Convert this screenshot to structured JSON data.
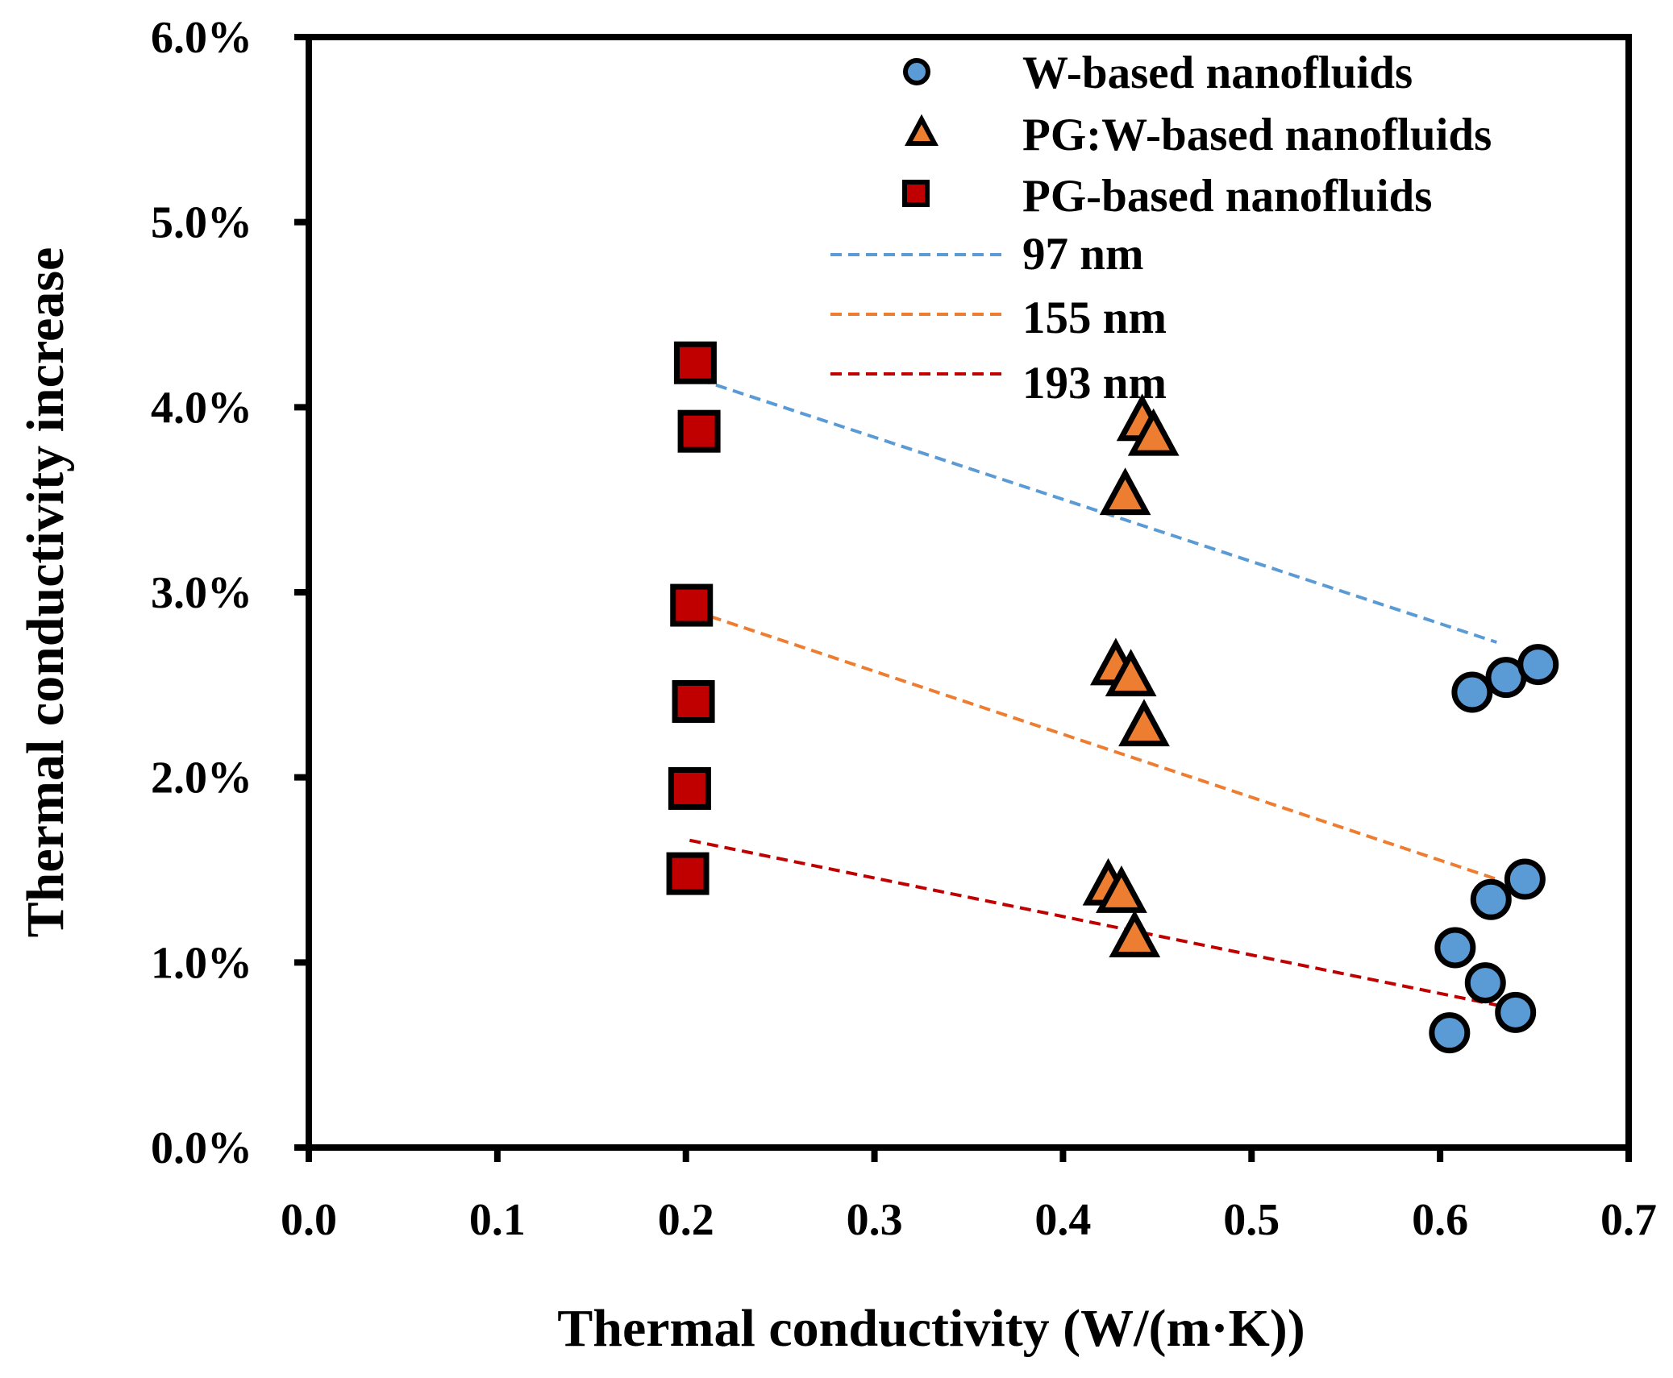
{
  "chart_data": {
    "type": "scatter",
    "xlabel": "Thermal conductivity (W/(m·K))",
    "ylabel": "Thermal conductivity increase",
    "xlim": [
      0,
      0.7
    ],
    "ylim": [
      0,
      0.06
    ],
    "x_ticks": [
      "0.0",
      "0.1",
      "0.2",
      "0.3",
      "0.4",
      "0.5",
      "0.6",
      "0.7"
    ],
    "y_ticks": [
      "0.0%",
      "1.0%",
      "2.0%",
      "3.0%",
      "4.0%",
      "5.0%",
      "6.0%"
    ],
    "grid": false,
    "legend_position": "top-right",
    "series": [
      {
        "name": "W-based nanofluids",
        "marker": "circle",
        "color": "#5B9BD5",
        "points": [
          [
            0.617,
            0.0246
          ],
          [
            0.635,
            0.0254
          ],
          [
            0.652,
            0.0261
          ],
          [
            0.608,
            0.0108
          ],
          [
            0.627,
            0.0134
          ],
          [
            0.645,
            0.0145
          ],
          [
            0.605,
            0.0062
          ],
          [
            0.624,
            0.0089
          ],
          [
            0.64,
            0.0073
          ]
        ]
      },
      {
        "name": "PG:W-based nanofluids",
        "marker": "triangle",
        "color": "#ED7D31",
        "points": [
          [
            0.433,
            0.0352
          ],
          [
            0.442,
            0.0392
          ],
          [
            0.448,
            0.0384
          ],
          [
            0.428,
            0.026
          ],
          [
            0.436,
            0.0254
          ],
          [
            0.443,
            0.0227
          ],
          [
            0.424,
            0.0141
          ],
          [
            0.431,
            0.0137
          ],
          [
            0.438,
            0.0113
          ]
        ]
      },
      {
        "name": "PG-based nanofluids",
        "marker": "square",
        "color": "#C00000",
        "points": [
          [
            0.205,
            0.0424
          ],
          [
            0.207,
            0.0387
          ],
          [
            0.203,
            0.0293
          ],
          [
            0.204,
            0.0241
          ],
          [
            0.202,
            0.0194
          ],
          [
            0.201,
            0.0148
          ]
        ]
      }
    ],
    "trend_lines": [
      {
        "name": "97 nm",
        "color": "#5B9BD5",
        "x": [
          0.207,
          0.63
        ],
        "y": [
          0.0415,
          0.0273
        ]
      },
      {
        "name": "155 nm",
        "color": "#ED7D31",
        "x": [
          0.204,
          0.63
        ],
        "y": [
          0.029,
          0.0145
        ]
      },
      {
        "name": "193 nm",
        "color": "#C00000",
        "x": [
          0.202,
          0.63
        ],
        "y": [
          0.0166,
          0.0077
        ]
      }
    ]
  }
}
